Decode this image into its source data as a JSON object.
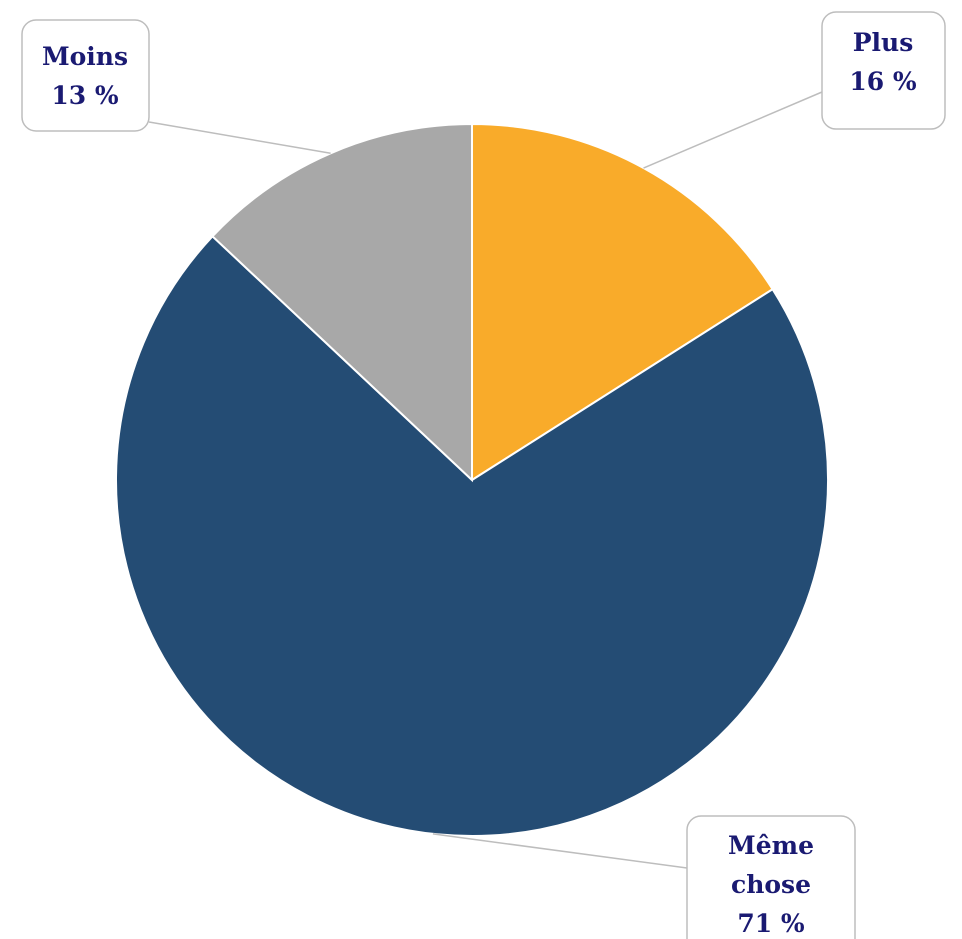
{
  "chart_data": {
    "type": "pie",
    "start_angle_deg": 0,
    "direction": "clockwise",
    "slices": [
      {
        "key": "plus",
        "label": "Plus",
        "value": 16,
        "value_label": "16 %",
        "color": "#F9AB2A"
      },
      {
        "key": "meme",
        "label": "Même chose",
        "label_lines": [
          "Même",
          "chose"
        ],
        "value": 71,
        "value_label": "71 %",
        "color": "#244C74"
      },
      {
        "key": "moins",
        "label": "Moins",
        "value": 13,
        "value_label": "13 %",
        "color": "#A8A8A8"
      }
    ],
    "label_color": "#1A1A72",
    "legend": "none"
  }
}
